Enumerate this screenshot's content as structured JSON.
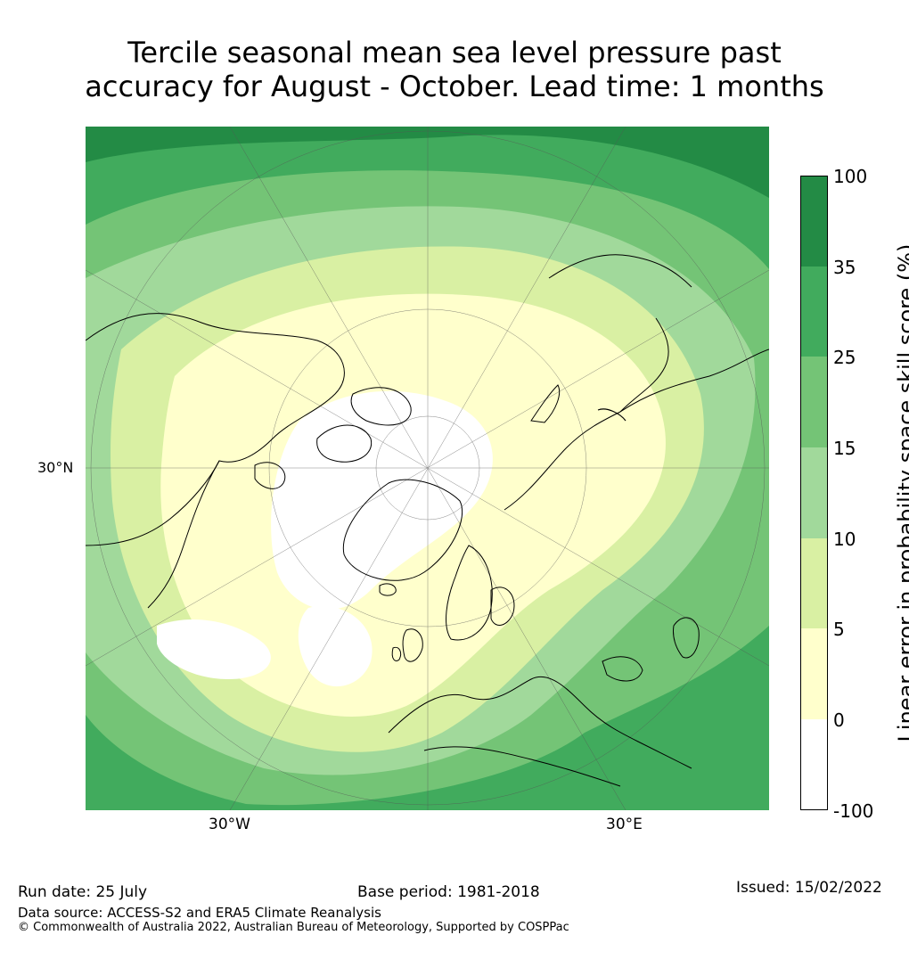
{
  "title": {
    "line1": "Tercile seasonal mean sea level pressure past",
    "line2": "accuracy for August - October. Lead time: 1 months"
  },
  "map": {
    "projection": "north-polar-stereographic",
    "lat_label": "30°N",
    "lon_labels": [
      "30°W",
      "30°E"
    ],
    "description_regions": [
      "North America",
      "Greenland",
      "Europe",
      "Asia",
      "Arctic Ocean"
    ]
  },
  "colorbar": {
    "title": "Linear error in probability space skill score (%)",
    "ticks": [
      "100",
      "35",
      "25",
      "15",
      "10",
      "5",
      "0",
      "-100"
    ],
    "colors": [
      "#238b45",
      "#41ab5d",
      "#74c476",
      "#a1d99b",
      "#d9f0a3",
      "#ffffcc",
      "#ffffff"
    ]
  },
  "footer": {
    "run_date": "Run date: 25 July",
    "base_period": "Base period: 1981-2018",
    "issued": "Issued: 15/02/2022",
    "data_source": "Data source: ACCESS-S2 and ERA5 Climate Reanalysis",
    "copyright": "© Commonwealth of Australia 2022, Australian Bureau of Meteorology, Supported by COSPPac"
  }
}
